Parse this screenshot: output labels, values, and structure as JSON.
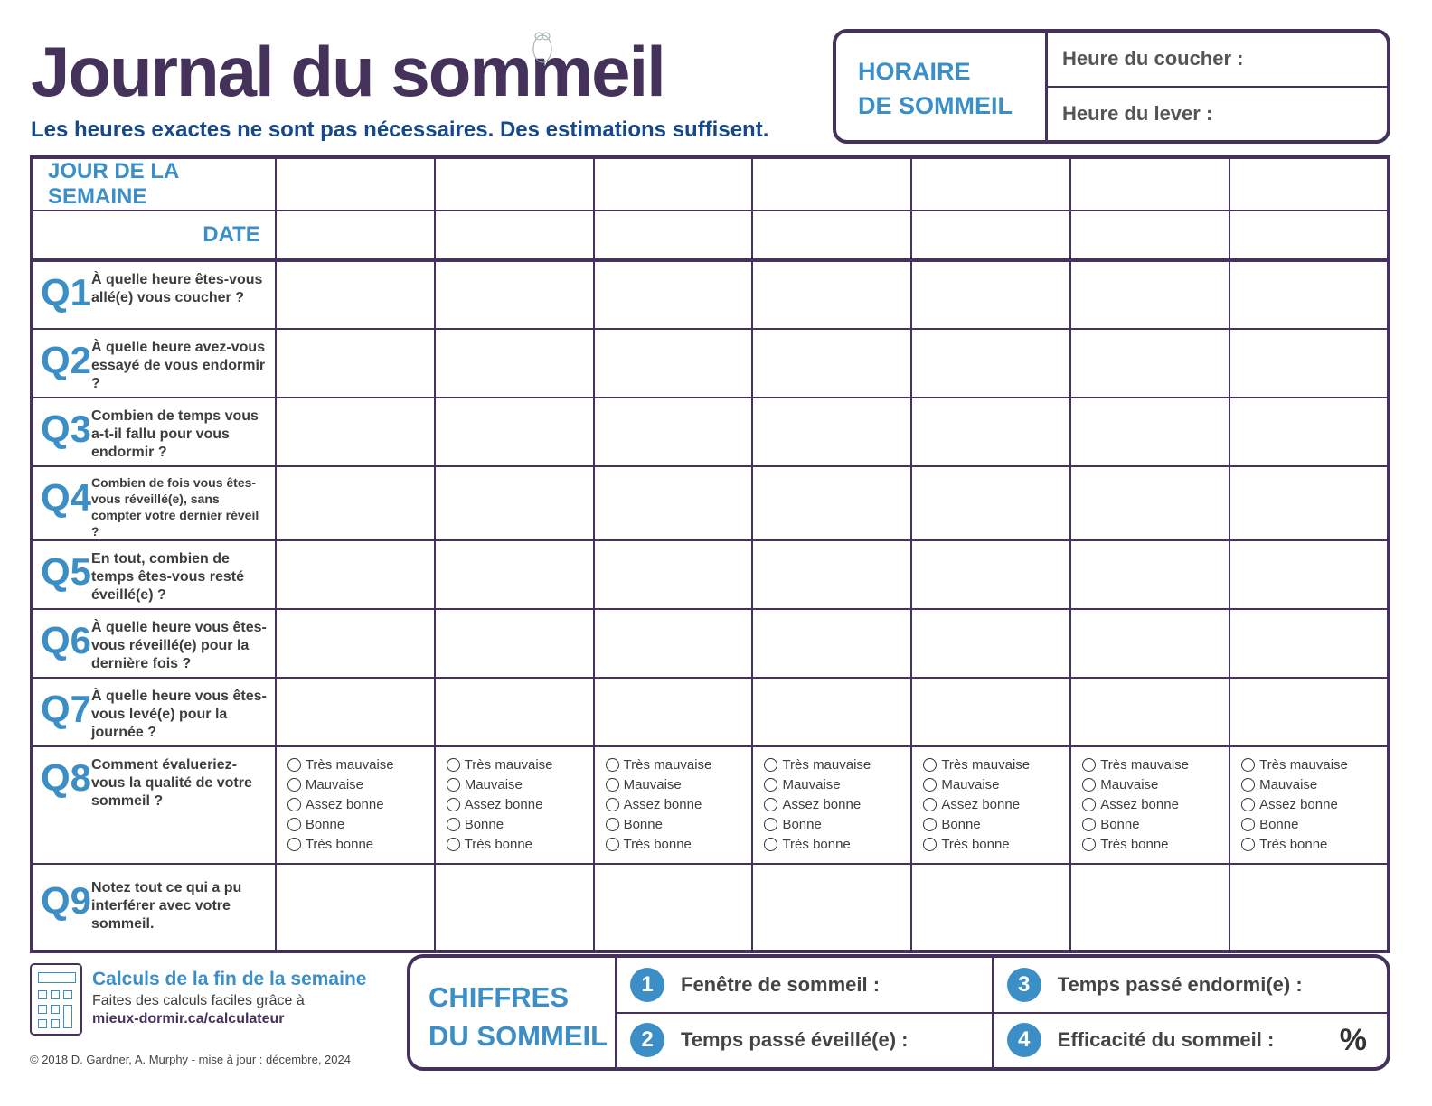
{
  "header": {
    "title": "Journal du sommeil",
    "subtitle": "Les heures exactes ne sont pas nécessaires. Des estimations suffisent."
  },
  "horaire": {
    "label_line1": "HORAIRE",
    "label_line2": "DE SOMMEIL",
    "coucher": "Heure du coucher :",
    "lever": "Heure du lever :"
  },
  "table": {
    "day_header": "JOUR DE LA SEMAINE",
    "date_header": "DATE",
    "day_columns": 7,
    "questions": [
      {
        "num": "Q1",
        "text": "À quelle heure êtes-vous allé(e) vous coucher ?"
      },
      {
        "num": "Q2",
        "text": "À quelle heure avez-vous essayé de vous endormir ?"
      },
      {
        "num": "Q3",
        "text": "Combien de temps vous a-t-il fallu pour vous endormir ?"
      },
      {
        "num": "Q4",
        "text": "Combien de fois vous êtes-vous réveillé(e), sans compter votre dernier réveil ?"
      },
      {
        "num": "Q5",
        "text": "En tout, combien de temps êtes-vous resté éveillé(e) ?"
      },
      {
        "num": "Q6",
        "text": "À quelle heure vous êtes-vous réveillé(e) pour la dernière fois ?"
      },
      {
        "num": "Q7",
        "text": "À quelle heure vous êtes-vous levé(e) pour la journée ?"
      },
      {
        "num": "Q8",
        "text": "Comment évalueriez-vous la qualité de votre sommeil ?",
        "options": [
          "Très mauvaise",
          "Mauvaise",
          "Assez bonne",
          "Bonne",
          "Très bonne"
        ]
      },
      {
        "num": "Q9",
        "text": "Notez tout ce qui a pu interférer avec votre sommeil."
      }
    ]
  },
  "footer": {
    "calc_title": "Calculs de la fin de la semaine",
    "calc_text": "Faites des calculs faciles grâce à",
    "calc_url": "mieux-dormir.ca/calculateur",
    "copyright": "© 2018 D. Gardner, A. Murphy - mise à jour : décembre, 2024"
  },
  "chiffres": {
    "label_line1": "CHIFFRES",
    "label_line2": "DU SOMMEIL",
    "items": [
      {
        "n": "1",
        "label": "Fenêtre de sommeil :"
      },
      {
        "n": "2",
        "label": "Temps passé éveillé(e) :"
      },
      {
        "n": "3",
        "label": "Temps passé endormi(e) :"
      },
      {
        "n": "4",
        "label": "Efficacité du sommeil :",
        "unit": "%"
      }
    ]
  },
  "colors": {
    "purple": "#45325a",
    "blue": "#3b8fc6"
  }
}
